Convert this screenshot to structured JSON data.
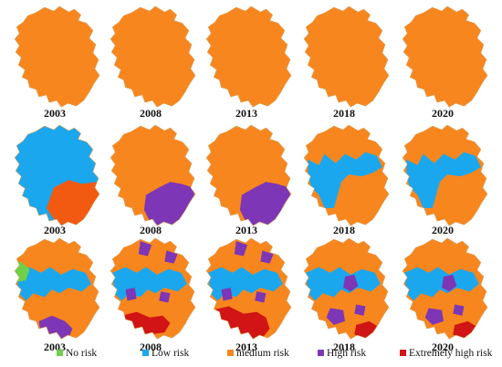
{
  "colors": {
    "no_risk": "#6fd14a",
    "low_risk": "#1aa7ee",
    "medium_risk": "#f7861e",
    "high_risk": "#7d36b5",
    "extremely_high_risk": "#d11414",
    "orange_red": "#f25a12"
  },
  "rows": [
    {
      "years": [
        "2003",
        "2008",
        "2013",
        "2018",
        "2020"
      ],
      "panels": [
        {
          "fill": "medium_risk",
          "overlays": []
        },
        {
          "fill": "medium_risk",
          "overlays": []
        },
        {
          "fill": "medium_risk",
          "overlays": []
        },
        {
          "fill": "medium_risk",
          "overlays": []
        },
        {
          "fill": "medium_risk",
          "overlays": []
        }
      ]
    },
    {
      "years": [
        "2003",
        "2008",
        "2013",
        "2018",
        "2020"
      ],
      "panels": [
        {
          "fill": "low_risk",
          "overlays": [
            "se_orange_red"
          ]
        },
        {
          "fill": "medium_risk",
          "overlays": [
            "se_high"
          ]
        },
        {
          "fill": "medium_risk",
          "overlays": [
            "se_high"
          ]
        },
        {
          "fill": "medium_risk",
          "overlays": [
            "mid_low_band"
          ]
        },
        {
          "fill": "medium_risk",
          "overlays": [
            "mid_low_band"
          ]
        }
      ]
    },
    {
      "years": [
        "2003",
        "2008",
        "2013",
        "2018",
        "2020"
      ],
      "panels": [
        {
          "fill": "medium_risk",
          "overlays": [
            "low_patches",
            "west_no_risk",
            "south_high"
          ]
        },
        {
          "fill": "medium_risk",
          "overlays": [
            "low_patches",
            "north_high",
            "south_extreme"
          ]
        },
        {
          "fill": "medium_risk",
          "overlays": [
            "low_patches",
            "north_high",
            "south_extreme_big"
          ]
        },
        {
          "fill": "medium_risk",
          "overlays": [
            "low_patches",
            "mid_high",
            "se_extreme_small"
          ]
        },
        {
          "fill": "medium_risk",
          "overlays": [
            "low_patches",
            "mid_high",
            "se_extreme_small"
          ]
        }
      ]
    }
  ],
  "legend": [
    {
      "label": "No risk",
      "color": "no_risk"
    },
    {
      "label": "Low risk",
      "color": "low_risk"
    },
    {
      "label": "medium risk",
      "color": "medium_risk"
    },
    {
      "label": "High risk",
      "color": "high_risk"
    },
    {
      "label": "Extremely high risk",
      "color": "extremely_high_risk"
    }
  ]
}
